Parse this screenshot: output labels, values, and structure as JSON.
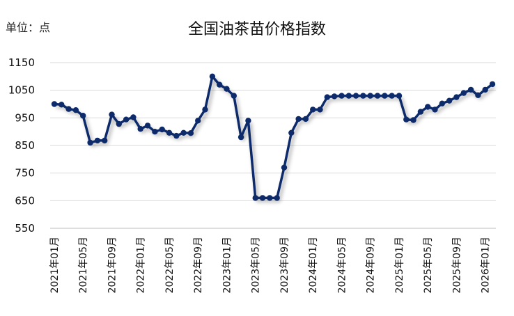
{
  "unit_label": "单位：点",
  "chart_data": {
    "type": "line",
    "title": "全国油茶苗价格指数",
    "ylim": [
      550,
      1150
    ],
    "yticks": [
      1150,
      1050,
      950,
      850,
      750,
      650,
      550
    ],
    "xticklabels": [
      "2021年01月",
      "2021年05月",
      "2021年09月",
      "2022年01月",
      "2022年05月",
      "2022年09月",
      "2023年01月",
      "2023年05月",
      "2023年09月",
      "2024年01月",
      "2024年05月",
      "2024年09月",
      "2025年01月",
      "2025年05月",
      "2025年09月",
      "2026年01月"
    ],
    "grid": true,
    "line_color": "#0d2b6b",
    "series": [
      {
        "values": [
          1000,
          998,
          982,
          978,
          958,
          860,
          868,
          868,
          962,
          928,
          944,
          952,
          910,
          922,
          900,
          908,
          896,
          885,
          896,
          895,
          940,
          980,
          1100,
          1070,
          1055,
          1030,
          880,
          940,
          660,
          660,
          660,
          660,
          770,
          896,
          946,
          946,
          980,
          980,
          1025,
          1028,
          1030,
          1030,
          1030,
          1030,
          1030,
          1030,
          1030,
          1030,
          1030,
          944,
          942,
          972,
          990,
          980,
          1002,
          1012,
          1025,
          1040,
          1052,
          1032,
          1052,
          1072
        ]
      }
    ]
  }
}
